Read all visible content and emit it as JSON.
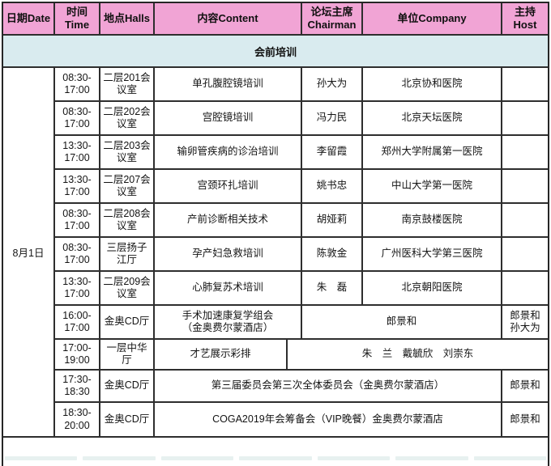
{
  "colors": {
    "header_bg": "#F1A4D5",
    "band_bg": "#D9EBEF",
    "border": "#2e2e2e",
    "text": "#141414"
  },
  "table": {
    "columns": [
      {
        "id": "date",
        "label": "日期Date"
      },
      {
        "id": "time",
        "label": "时间\nTime"
      },
      {
        "id": "halls",
        "label": "地点Halls"
      },
      {
        "id": "content",
        "label": "内容Content"
      },
      {
        "id": "chairman",
        "label": "论坛主席\nChairman"
      },
      {
        "id": "company",
        "label": "单位Company"
      },
      {
        "id": "host",
        "label": "主持\nHost"
      }
    ],
    "section_title": "会前培训",
    "date_label": "8月1日",
    "rows": [
      {
        "cells": [
          {
            "col": "time",
            "text": "08:30-17:00"
          },
          {
            "col": "halls",
            "text": "二层201会议室"
          },
          {
            "col": "content",
            "text": "单孔腹腔镜培训"
          },
          {
            "col": "chair",
            "text": "孙大为"
          },
          {
            "col": "comp",
            "text": "北京协和医院"
          },
          {
            "col": "host",
            "text": ""
          }
        ]
      },
      {
        "cells": [
          {
            "col": "time",
            "text": "08:30-17:00"
          },
          {
            "col": "halls",
            "text": "二层202会议室"
          },
          {
            "col": "content",
            "text": "宫腔镜培训"
          },
          {
            "col": "chair",
            "text": "冯力民"
          },
          {
            "col": "comp",
            "text": "北京天坛医院"
          },
          {
            "col": "host",
            "text": ""
          }
        ]
      },
      {
        "cells": [
          {
            "col": "time",
            "text": "13:30-17:00"
          },
          {
            "col": "halls",
            "text": "二层203会议室"
          },
          {
            "col": "content",
            "text": "输卵管疾病的诊治培训"
          },
          {
            "col": "chair",
            "text": "李留霞"
          },
          {
            "col": "comp",
            "text": "郑州大学附属第一医院"
          },
          {
            "col": "host",
            "text": ""
          }
        ]
      },
      {
        "cells": [
          {
            "col": "time",
            "text": "13:30-17:00"
          },
          {
            "col": "halls",
            "text": "二层207会议室"
          },
          {
            "col": "content",
            "text": "宫颈环扎培训"
          },
          {
            "col": "chair",
            "text": "姚书忠"
          },
          {
            "col": "comp",
            "text": "中山大学第一医院"
          },
          {
            "col": "host",
            "text": ""
          }
        ]
      },
      {
        "cells": [
          {
            "col": "time",
            "text": "08:30-17:00"
          },
          {
            "col": "halls",
            "text": "二层208会议室"
          },
          {
            "col": "content",
            "text": "产前诊断相关技术"
          },
          {
            "col": "chair",
            "text": "胡娅莉"
          },
          {
            "col": "comp",
            "text": "南京鼓楼医院"
          },
          {
            "col": "host",
            "text": ""
          }
        ]
      },
      {
        "cells": [
          {
            "col": "time",
            "text": "08:30-17:00"
          },
          {
            "col": "halls",
            "text": "三层扬子江厅"
          },
          {
            "col": "content",
            "text": "孕产妇急救培训"
          },
          {
            "col": "chair",
            "text": "陈敦金"
          },
          {
            "col": "comp",
            "text": "广州医科大学第三医院"
          },
          {
            "col": "host",
            "text": ""
          }
        ]
      },
      {
        "cells": [
          {
            "col": "time",
            "text": "13:30-17:00"
          },
          {
            "col": "halls",
            "text": "二层209会议室"
          },
          {
            "col": "content",
            "text": "心肺复苏术培训"
          },
          {
            "col": "chair",
            "text": "朱　磊"
          },
          {
            "col": "comp",
            "text": "北京朝阳医院"
          },
          {
            "col": "host",
            "text": ""
          }
        ]
      },
      {
        "cells": [
          {
            "col": "time",
            "text": "16:00-17:00"
          },
          {
            "col": "halls",
            "text": "金奥CD厅"
          },
          {
            "col": "content",
            "text": "手术加速康复学组会\n（金奥费尔蒙酒店）"
          },
          {
            "col": "chair-comp",
            "text": "郎景和"
          },
          {
            "col": "host",
            "text": "郎景和\n孙大为"
          }
        ]
      },
      {
        "cells": [
          {
            "col": "time",
            "text": "17:00-19:00"
          },
          {
            "col": "halls",
            "text": "一层中华厅"
          },
          {
            "col": "content-sm",
            "text": "才艺展示彩排"
          },
          {
            "col": "names",
            "text": "朱　兰　戴毓欣　刘崇东"
          }
        ]
      },
      {
        "cells": [
          {
            "col": "time",
            "text": "17:30-18:30"
          },
          {
            "col": "halls",
            "text": "金奥CD厅"
          },
          {
            "col": "content-wide",
            "text": "第三届委员会第三次全体委员会（金奥费尔蒙酒店）"
          },
          {
            "col": "host",
            "text": "郎景和"
          }
        ]
      },
      {
        "cells": [
          {
            "col": "time",
            "text": "18:30-20:00"
          },
          {
            "col": "halls",
            "text": "金奥CD厅"
          },
          {
            "col": "content-wide",
            "text": "COGA2019年会筹备会（VIP晚餐）金奥费尔蒙酒店"
          },
          {
            "col": "host",
            "text": "郎景和"
          }
        ]
      }
    ]
  }
}
